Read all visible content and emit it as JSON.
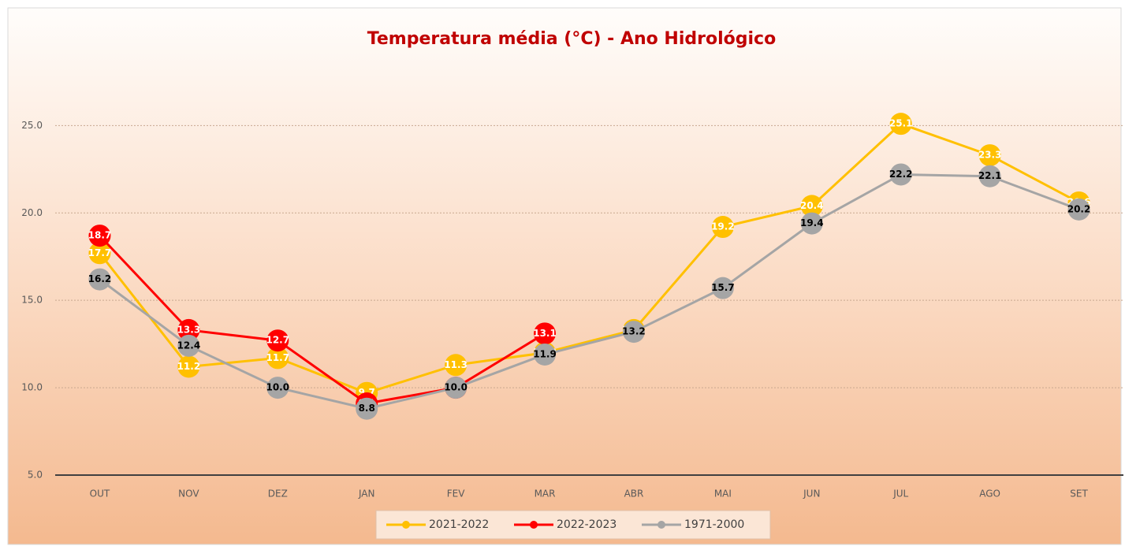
{
  "chart_data": {
    "type": "line",
    "title": "Temperatura média (°C) - Ano Hidrológico",
    "categories": [
      "OUT",
      "NOV",
      "DEZ",
      "JAN",
      "FEV",
      "MAR",
      "ABR",
      "MAI",
      "JUN",
      "JUL",
      "AGO",
      "SET"
    ],
    "ylim": [
      5,
      27
    ],
    "yticks": [
      {
        "value": 5,
        "label": "5.0"
      },
      {
        "value": 10,
        "label": "10.0"
      },
      {
        "value": 15,
        "label": "15.0"
      },
      {
        "value": 20,
        "label": "20.0"
      },
      {
        "value": 25,
        "label": "25.0"
      }
    ],
    "grid": true,
    "series": [
      {
        "name": "2021-2022",
        "color": "#ffc000",
        "label_color": "#ffffff",
        "values": [
          17.7,
          11.2,
          11.7,
          9.7,
          11.3,
          12.0,
          13.3,
          19.2,
          20.4,
          25.1,
          23.3,
          20.6
        ],
        "value_labels": [
          "17.7",
          "11.2",
          "11.7",
          "9.7",
          "11.3",
          "12.0",
          "13.3",
          "19.2",
          "20.4",
          "25.1",
          "23.3",
          "20.6"
        ]
      },
      {
        "name": "2022-2023",
        "color": "#ff0000",
        "label_color": "#ffffff",
        "values": [
          18.7,
          13.3,
          12.7,
          9.1,
          10.0,
          13.1,
          null,
          null,
          null,
          null,
          null,
          null
        ],
        "value_labels": [
          "18.7",
          "13.3",
          "12.7",
          "9.1",
          "10.0",
          "13.1",
          null,
          null,
          null,
          null,
          null,
          null
        ]
      },
      {
        "name": "1971-2000",
        "color": "#a5a5a5",
        "label_color": "#000000",
        "values": [
          16.2,
          12.4,
          10.0,
          8.8,
          10.0,
          11.9,
          13.2,
          15.7,
          19.4,
          22.2,
          22.1,
          20.2
        ],
        "value_labels": [
          "16.2",
          "12.4",
          "10.0",
          "8.8",
          "10.0",
          "11.9",
          "13.2",
          "15.7",
          "19.4",
          "22.2",
          "22.1",
          "20.2"
        ]
      }
    ]
  }
}
